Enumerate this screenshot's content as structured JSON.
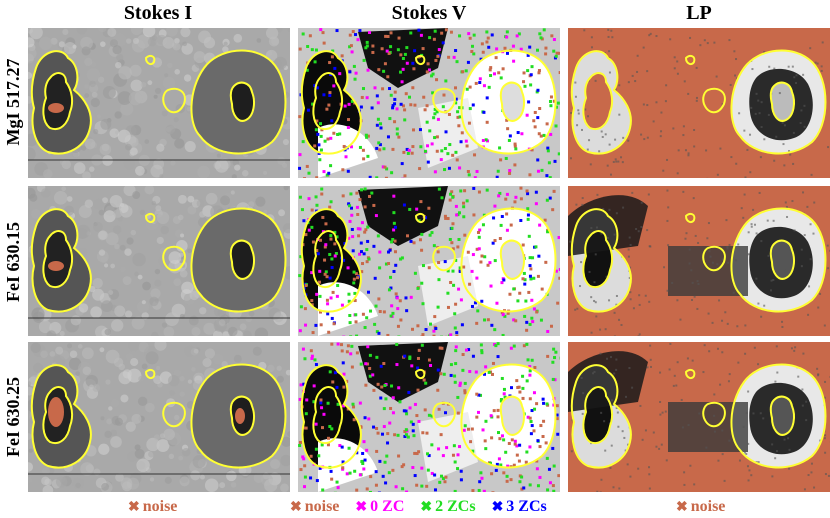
{
  "columns": [
    "Stokes I",
    "Stokes V",
    "LP"
  ],
  "rows": [
    "MgI 517.27",
    "FeI 630.15",
    "FeI 630.25"
  ],
  "legends": {
    "stokes_i": [
      {
        "label": "noise",
        "color": "#c8694a"
      }
    ],
    "stokes_v": [
      {
        "label": "noise",
        "color": "#c8694a"
      },
      {
        "label": "0 ZC",
        "color": "#ff00ff"
      },
      {
        "label": "2 ZCs",
        "color": "#22dd22"
      },
      {
        "label": "3 ZCs",
        "color": "#0000ff"
      }
    ],
    "lp": [
      {
        "label": "noise",
        "color": "#c8694a"
      }
    ]
  },
  "colors": {
    "contour": "#ffff33",
    "noise": "#c8694a",
    "zc0": "#ff00ff",
    "zc2": "#22dd22",
    "zc3": "#0000ff"
  }
}
